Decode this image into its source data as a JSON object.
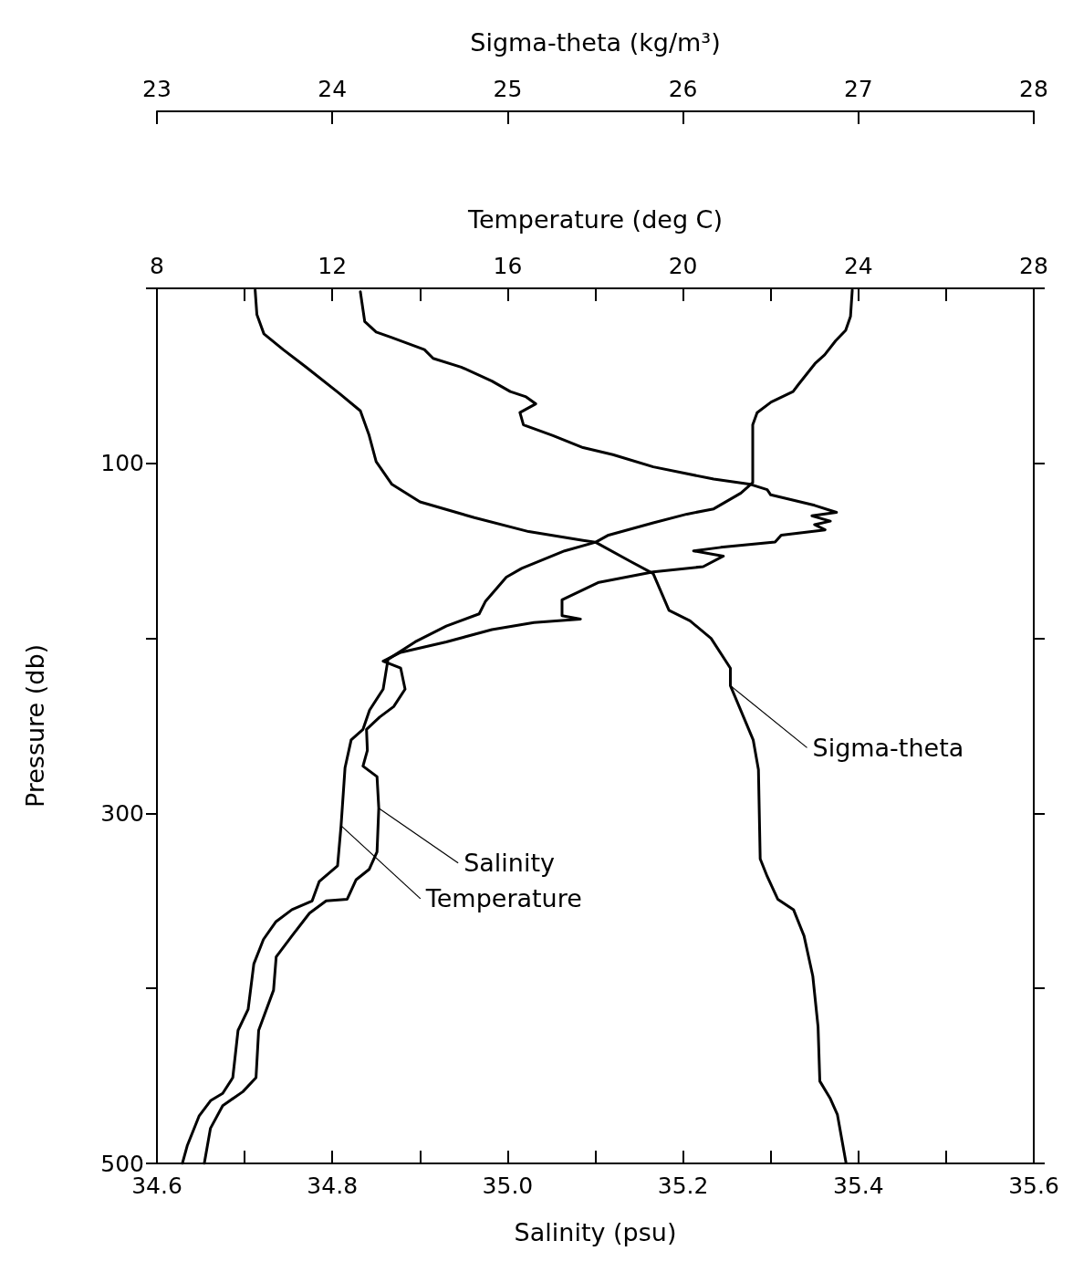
{
  "chart_data": [
    {
      "type": "line",
      "xlabel": "Sigma-theta (kg/m³)",
      "xlim": [
        23,
        28
      ],
      "xticks": [
        23,
        24,
        25,
        26,
        27,
        28
      ],
      "ylim": [
        500,
        0
      ],
      "yticks": [
        {
          "value": 0,
          "label": null
        },
        100,
        {
          "value": 200,
          "label": null
        },
        300,
        {
          "value": 400,
          "label": null
        },
        500
      ],
      "tick_labels": "x",
      "grid": false,
      "line_style": "solid",
      "series": [
        {
          "name": "Sigma-theta",
          "color": "#000000",
          "x": [
            23.56,
            23.57,
            23.61,
            23.72,
            23.85,
            24.04,
            24.16,
            24.21,
            24.25,
            24.34,
            24.5,
            24.81,
            25.12,
            25.43,
            25.5,
            25.7,
            25.83,
            25.92,
            26.04,
            26.16,
            26.27,
            26.27,
            26.4,
            26.43,
            26.44,
            26.48,
            26.54,
            26.63,
            26.69,
            26.74,
            26.77,
            26.78,
            26.84,
            26.88,
            26.93
          ],
          "values": [
            1,
            15,
            26,
            35,
            45,
            60,
            70,
            84,
            99,
            112,
            122,
            131,
            139,
            144,
            145,
            156,
            163,
            184,
            190,
            200,
            217,
            227,
            258,
            275,
            326,
            336,
            349,
            355,
            370,
            393,
            422,
            453,
            463,
            472,
            500
          ]
        }
      ]
    },
    {
      "type": "line",
      "xlabel": "Salinity (psu)",
      "ylabel": "Pressure (db)",
      "x2label": "Temperature (deg C)",
      "xlim": [
        34.6,
        35.6
      ],
      "xticks": [
        {
          "value": 34.6,
          "label": "34.6"
        },
        {
          "value": 34.7,
          "label": null
        },
        {
          "value": 34.8,
          "label": "34.8"
        },
        {
          "value": 34.9,
          "label": null
        },
        {
          "value": 35.0,
          "label": "35.0"
        },
        {
          "value": 35.1,
          "label": null
        },
        {
          "value": 35.2,
          "label": "35.2"
        },
        {
          "value": 35.3,
          "label": null
        },
        {
          "value": 35.4,
          "label": "35.4"
        },
        {
          "value": 35.5,
          "label": null
        },
        {
          "value": 35.6,
          "label": "35.6"
        }
      ],
      "x2lim": [
        8,
        28
      ],
      "x2ticks": [
        8,
        {
          "value": 10,
          "label": null
        },
        12,
        {
          "value": 14,
          "label": null
        },
        16,
        {
          "value": 18,
          "label": null
        },
        20,
        {
          "value": 22,
          "label": null
        },
        24,
        {
          "value": 26,
          "label": null
        },
        28
      ],
      "ylim": [
        500,
        0
      ],
      "yticks": [
        {
          "value": 0,
          "label": null
        },
        100,
        {
          "value": 200,
          "label": null
        },
        300,
        {
          "value": 400,
          "label": null
        },
        500
      ],
      "grid": false,
      "line_style": "solid",
      "series": [
        {
          "name": "Salinity",
          "color": "#000000",
          "x": [
            34.832,
            34.837,
            34.85,
            34.867,
            34.905,
            34.915,
            34.947,
            34.982,
            35.003,
            35.021,
            35.032,
            35.014,
            35.018,
            35.051,
            35.086,
            35.12,
            35.166,
            35.235,
            35.277,
            35.296,
            35.3,
            35.35,
            35.375,
            35.347,
            35.368,
            35.35,
            35.362,
            35.312,
            35.305,
            35.243,
            35.212,
            35.246,
            35.223,
            35.166,
            35.104,
            35.062,
            35.062,
            35.083,
            35.03,
            34.982,
            34.93,
            34.878,
            34.858,
            34.878,
            34.883,
            34.87,
            34.854,
            34.839,
            34.84,
            34.835,
            34.851,
            34.853,
            34.851,
            34.842,
            34.827,
            34.817,
            34.793,
            34.774,
            34.754,
            34.736,
            34.733,
            34.716,
            34.713,
            34.698,
            34.675,
            34.661,
            34.654
          ],
          "values": [
            2,
            19,
            25,
            28,
            35,
            40,
            45,
            53,
            59,
            62,
            66,
            71,
            78,
            84,
            91,
            95,
            102,
            109,
            112,
            115,
            118,
            124,
            128,
            130,
            133,
            135,
            138,
            141,
            145,
            148,
            150,
            153,
            159,
            162,
            168,
            178,
            187,
            189,
            191,
            195,
            202,
            208,
            213,
            217,
            229,
            239,
            245,
            252,
            264,
            273,
            279,
            297,
            322,
            332,
            338,
            349,
            350,
            357,
            370,
            382,
            401,
            424,
            451,
            459,
            467,
            480,
            500
          ]
        },
        {
          "name": "Temperature",
          "axis": "x2",
          "color": "#000000",
          "x": [
            23.86,
            23.82,
            23.71,
            23.48,
            23.23,
            23.01,
            22.63,
            22.51,
            22.01,
            21.69,
            21.59,
            21.59,
            21.59,
            21.32,
            20.7,
            20.09,
            19.32,
            18.3,
            18.01,
            17.3,
            16.32,
            15.97,
            15.49,
            15.35,
            14.6,
            13.89,
            13.27,
            13.16,
            12.85,
            12.7,
            12.43,
            12.29,
            12.2,
            12.12,
            11.7,
            11.54,
            11.08,
            10.71,
            10.43,
            10.21,
            10.08,
            9.85,
            9.73,
            9.5,
            9.23,
            8.96,
            8.69,
            8.58
          ],
          "values": [
            1,
            16,
            24,
            30,
            38,
            43,
            55,
            59,
            65,
            71,
            78,
            93,
            111,
            117,
            126,
            129,
            134,
            141,
            145,
            150,
            160,
            165,
            179,
            186,
            193,
            202,
            212,
            229,
            241,
            252,
            258,
            274,
            307,
            330,
            339,
            350,
            355,
            362,
            372,
            386,
            412,
            424,
            451,
            460,
            464,
            473,
            490,
            500
          ]
        }
      ]
    }
  ]
}
